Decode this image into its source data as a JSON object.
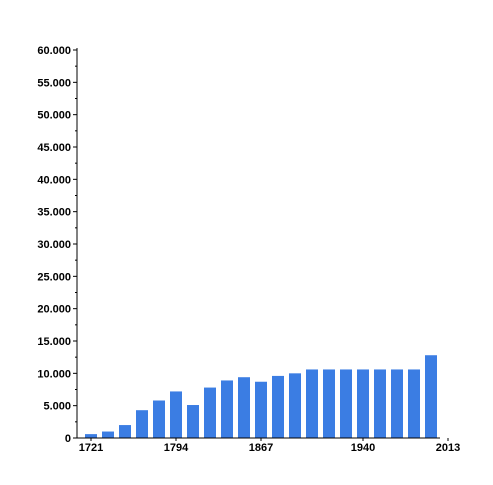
{
  "chart_data": {
    "type": "bar",
    "title": "",
    "xlabel": "",
    "ylabel": "",
    "bar_color": "#3b7de3",
    "axis_color": "#000000",
    "grid": false,
    "ylim": [
      0,
      60000
    ],
    "y_ticks": [
      "0",
      "5.000",
      "10.000",
      "15.000",
      "20.000",
      "25.000",
      "30.000",
      "35.000",
      "40.000",
      "45.000",
      "50.000",
      "55.000",
      "60.000"
    ],
    "x_tick_labels": [
      {
        "index": 0,
        "label": "1721"
      },
      {
        "index": 5,
        "label": "1794"
      },
      {
        "index": 10,
        "label": "1867"
      },
      {
        "index": 16,
        "label": "1940"
      },
      {
        "index": 21,
        "label": "2013"
      }
    ],
    "values": [
      600,
      1000,
      2000,
      4300,
      5800,
      7200,
      5100,
      7800,
      8900,
      9400,
      8700,
      9600,
      10000,
      10600,
      10600,
      10600,
      10600,
      10600,
      10600,
      10600,
      12800
    ]
  }
}
